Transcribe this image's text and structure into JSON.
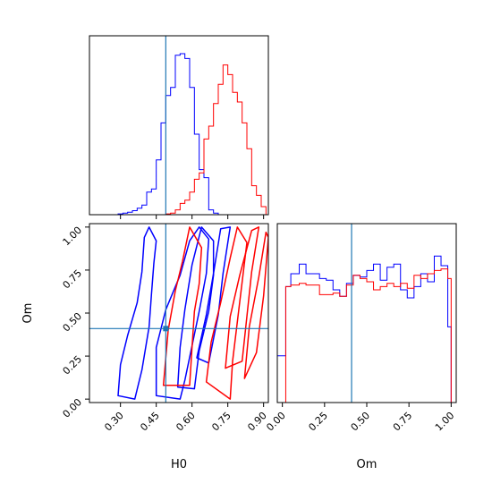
{
  "chart_data": {
    "type": "corner",
    "truth_color": "#1f77b4",
    "series_colors": [
      "#0000ff",
      "#ff0000"
    ],
    "truths": {
      "H0": 0.49,
      "Om": 0.41
    },
    "panels": [
      {
        "id": "H0-marginal",
        "type": "histogram",
        "variable": "H0",
        "xlim": [
          0.17,
          0.92
        ],
        "bin_edges": [
          0.17,
          0.19,
          0.21,
          0.23,
          0.25,
          0.27,
          0.29,
          0.31,
          0.33,
          0.35,
          0.37,
          0.39,
          0.41,
          0.43,
          0.45,
          0.47,
          0.49,
          0.51,
          0.53,
          0.55,
          0.57,
          0.59,
          0.61,
          0.63,
          0.65,
          0.67,
          0.69,
          0.71,
          0.73,
          0.75,
          0.77,
          0.79,
          0.81,
          0.83,
          0.85,
          0.87,
          0.89,
          0.91
        ],
        "series": [
          {
            "color": "#0000ff",
            "values": [
              0,
              0,
              0,
              0,
              0,
              0,
              0.005,
              0.01,
              0.015,
              0.025,
              0.04,
              0.06,
              0.14,
              0.16,
              0.34,
              0.57,
              0.74,
              0.79,
              0.99,
              1.0,
              0.97,
              0.79,
              0.5,
              0.28,
              0.23,
              0.03,
              0.01,
              0,
              0,
              0,
              0,
              0,
              0,
              0,
              0,
              0,
              0
            ]
          },
          {
            "color": "#ff0000",
            "values": [
              0,
              0,
              0,
              0,
              0,
              0,
              0,
              0,
              0,
              0,
              0,
              0,
              0,
              0,
              0,
              0,
              0.005,
              0.01,
              0.03,
              0.07,
              0.09,
              0.14,
              0.22,
              0.26,
              0.47,
              0.55,
              0.69,
              0.81,
              0.93,
              0.87,
              0.76,
              0.7,
              0.57,
              0.41,
              0.18,
              0.12,
              0.05
            ]
          }
        ]
      },
      {
        "id": "H0-Om-joint",
        "type": "contour",
        "xvar": "H0",
        "yvar": "Om",
        "xlim": [
          0.17,
          0.92
        ],
        "ylim": [
          -0.02,
          1.02
        ],
        "xticks": [
          {
            "value": 0.3,
            "label": "0.30"
          },
          {
            "value": 0.45,
            "label": "0.45"
          },
          {
            "value": 0.6,
            "label": "0.60"
          },
          {
            "value": 0.75,
            "label": "0.75"
          },
          {
            "value": 0.9,
            "label": "0.90"
          }
        ],
        "yticks": [
          {
            "value": 0.0,
            "label": "0.00"
          },
          {
            "value": 0.25,
            "label": "0.25"
          },
          {
            "value": 0.5,
            "label": "0.50"
          },
          {
            "value": 0.75,
            "label": "0.75"
          },
          {
            "value": 1.0,
            "label": "1.00"
          }
        ],
        "xlabel": "H0",
        "ylabel": "Om",
        "contours": [
          {
            "color": "#0000ff",
            "points": [
              [
                0.29,
                0.02
              ],
              [
                0.3,
                0.2
              ],
              [
                0.33,
                0.37
              ],
              [
                0.37,
                0.56
              ],
              [
                0.39,
                0.74
              ],
              [
                0.4,
                0.94
              ],
              [
                0.42,
                1.0
              ],
              [
                0.45,
                0.92
              ],
              [
                0.44,
                0.79
              ],
              [
                0.43,
                0.61
              ],
              [
                0.42,
                0.42
              ],
              [
                0.39,
                0.17
              ],
              [
                0.36,
                0.0
              ]
            ]
          },
          {
            "color": "#0000ff",
            "points": [
              [
                0.45,
                0.02
              ],
              [
                0.45,
                0.3
              ],
              [
                0.49,
                0.52
              ],
              [
                0.55,
                0.72
              ],
              [
                0.59,
                0.92
              ],
              [
                0.63,
                1.0
              ],
              [
                0.67,
                0.93
              ],
              [
                0.66,
                0.73
              ],
              [
                0.63,
                0.51
              ],
              [
                0.6,
                0.31
              ],
              [
                0.57,
                0.11
              ],
              [
                0.55,
                0.0
              ]
            ]
          },
          {
            "color": "#0000ff",
            "points": [
              [
                0.54,
                0.07
              ],
              [
                0.55,
                0.3
              ],
              [
                0.57,
                0.52
              ],
              [
                0.6,
                0.78
              ],
              [
                0.64,
                1.0
              ],
              [
                0.69,
                0.92
              ],
              [
                0.69,
                0.72
              ],
              [
                0.67,
                0.51
              ],
              [
                0.63,
                0.28
              ],
              [
                0.61,
                0.06
              ]
            ]
          },
          {
            "color": "#0000ff",
            "points": [
              [
                0.62,
                0.24
              ],
              [
                0.66,
                0.49
              ],
              [
                0.69,
                0.73
              ],
              [
                0.72,
                0.99
              ],
              [
                0.76,
                1.0
              ],
              [
                0.73,
                0.73
              ],
              [
                0.71,
                0.49
              ],
              [
                0.67,
                0.21
              ]
            ]
          },
          {
            "color": "#ff0000",
            "points": [
              [
                0.48,
                0.08
              ],
              [
                0.5,
                0.4
              ],
              [
                0.53,
                0.63
              ],
              [
                0.56,
                0.8
              ],
              [
                0.59,
                1.0
              ],
              [
                0.64,
                0.88
              ],
              [
                0.63,
                0.67
              ],
              [
                0.61,
                0.51
              ],
              [
                0.6,
                0.3
              ],
              [
                0.59,
                0.08
              ]
            ]
          },
          {
            "color": "#ff0000",
            "points": [
              [
                0.66,
                0.1
              ],
              [
                0.68,
                0.33
              ],
              [
                0.72,
                0.56
              ],
              [
                0.76,
                0.82
              ],
              [
                0.79,
                1.0
              ],
              [
                0.83,
                0.91
              ],
              [
                0.81,
                0.68
              ],
              [
                0.79,
                0.45
              ],
              [
                0.77,
                0.22
              ],
              [
                0.76,
                0.0
              ]
            ]
          },
          {
            "color": "#ff0000",
            "points": [
              [
                0.74,
                0.18
              ],
              [
                0.76,
                0.48
              ],
              [
                0.8,
                0.72
              ],
              [
                0.85,
                0.98
              ],
              [
                0.88,
                1.0
              ],
              [
                0.85,
                0.74
              ],
              [
                0.83,
                0.48
              ],
              [
                0.81,
                0.22
              ]
            ]
          },
          {
            "color": "#ff0000",
            "points": [
              [
                0.82,
                0.12
              ],
              [
                0.84,
                0.42
              ],
              [
                0.88,
                0.71
              ],
              [
                0.91,
                0.97
              ],
              [
                0.92,
                0.94
              ],
              [
                0.9,
                0.6
              ],
              [
                0.87,
                0.27
              ]
            ]
          }
        ]
      },
      {
        "id": "Om-marginal",
        "type": "histogram",
        "variable": "Om",
        "xlim": [
          -0.03,
          1.03
        ],
        "bin_edges": [
          -0.03,
          0.0,
          0.02,
          0.05,
          0.1,
          0.14,
          0.18,
          0.22,
          0.26,
          0.3,
          0.34,
          0.38,
          0.42,
          0.46,
          0.5,
          0.54,
          0.58,
          0.62,
          0.66,
          0.7,
          0.74,
          0.78,
          0.82,
          0.86,
          0.9,
          0.94,
          0.98,
          1.0,
          1.03
        ],
        "series": [
          {
            "color": "#0000ff",
            "values": [
              0.29,
              0.29,
              0.72,
              0.8,
              0.86,
              0.8,
              0.8,
              0.77,
              0.76,
              0.7,
              0.66,
              0.74,
              0.79,
              0.78,
              0.82,
              0.86,
              0.76,
              0.84,
              0.86,
              0.7,
              0.65,
              0.72,
              0.8,
              0.75,
              0.91,
              0.85,
              0.47,
              0.0
            ]
          },
          {
            "color": "#ff0000",
            "values": [
              0.0,
              0.0,
              0.72,
              0.73,
              0.74,
              0.73,
              0.73,
              0.67,
              0.67,
              0.68,
              0.66,
              0.73,
              0.79,
              0.77,
              0.75,
              0.7,
              0.72,
              0.74,
              0.72,
              0.74,
              0.71,
              0.79,
              0.77,
              0.8,
              0.82,
              0.83,
              0.77,
              0.0
            ]
          }
        ],
        "xticks": [
          {
            "value": 0.0,
            "label": "0.00"
          },
          {
            "value": 0.25,
            "label": "0.25"
          },
          {
            "value": 0.5,
            "label": "0.50"
          },
          {
            "value": 0.75,
            "label": "0.75"
          },
          {
            "value": 1.0,
            "label": "1.00"
          }
        ],
        "xlabel": "Om"
      }
    ]
  }
}
